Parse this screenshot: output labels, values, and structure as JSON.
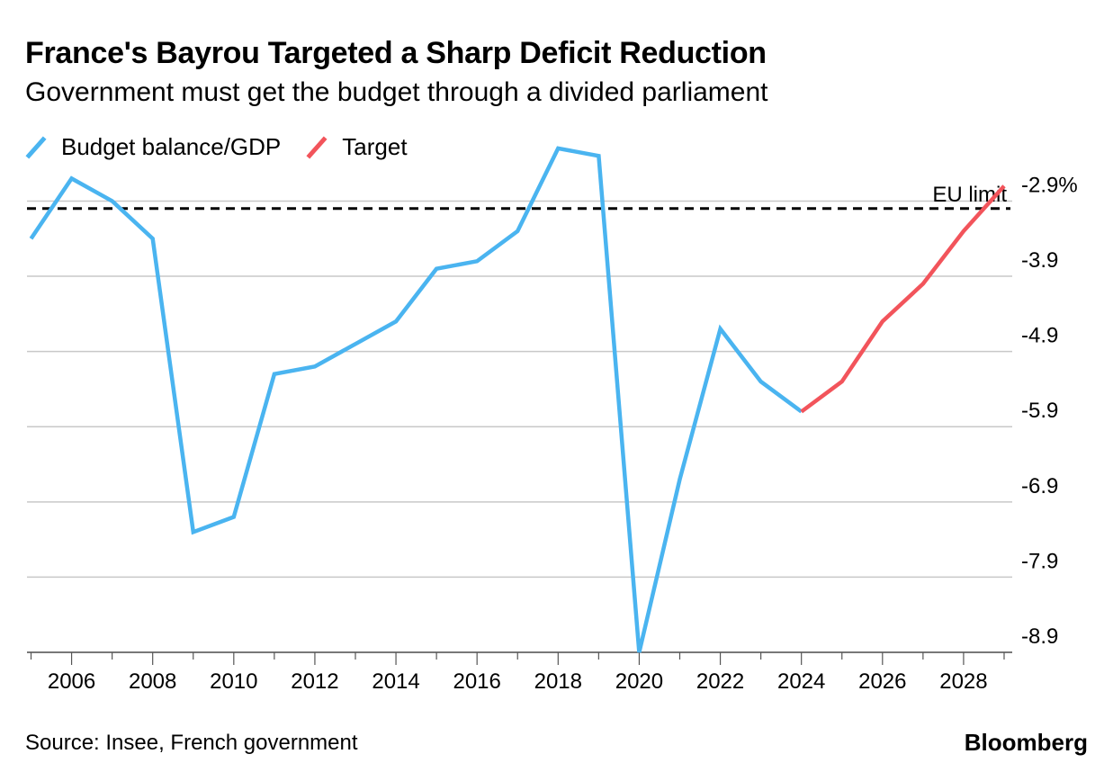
{
  "chart_data": {
    "type": "line",
    "title": "France's Bayrou Targeted a Sharp Deficit Reduction",
    "subtitle": "Government must get the budget through a divided parliament",
    "source": "Source: Insee, French government",
    "brand": "Bloomberg",
    "x_ticks": [
      2006,
      2008,
      2010,
      2012,
      2014,
      2016,
      2018,
      2020,
      2022,
      2024,
      2026,
      2028
    ],
    "y_ticks": [
      -2.9,
      -3.9,
      -4.9,
      -5.9,
      -6.9,
      -7.9,
      -8.9
    ],
    "y_tick_labels": [
      "-2.9%",
      "-3.9",
      "-4.9",
      "-5.9",
      "-6.9",
      "-7.9",
      "-8.9"
    ],
    "xlim": [
      2004.9,
      2029.2
    ],
    "ylim": [
      -8.9,
      -2.5
    ],
    "grid": true,
    "legend_position": "top-left",
    "reference_line": {
      "label": "EU limit",
      "value": -3.0
    },
    "series": [
      {
        "name": "Budget balance/GDP",
        "color": "#4ab4f0",
        "x": [
          2005,
          2006,
          2007,
          2008,
          2009,
          2010,
          2011,
          2012,
          2013,
          2014,
          2015,
          2016,
          2017,
          2018,
          2019,
          2020,
          2021,
          2022,
          2023,
          2024
        ],
        "y": [
          -3.4,
          -2.6,
          -2.9,
          -3.4,
          -7.3,
          -7.1,
          -5.2,
          -5.1,
          -4.8,
          -4.5,
          -3.8,
          -3.7,
          -3.3,
          -2.2,
          -2.3,
          -8.9,
          -6.6,
          -4.6,
          -5.3,
          -5.7
        ]
      },
      {
        "name": "Target",
        "color": "#f2545b",
        "x": [
          2024,
          2025,
          2026,
          2027,
          2028,
          2029
        ],
        "y": [
          -5.7,
          -5.3,
          -4.5,
          -4.0,
          -3.3,
          -2.7
        ]
      }
    ]
  }
}
